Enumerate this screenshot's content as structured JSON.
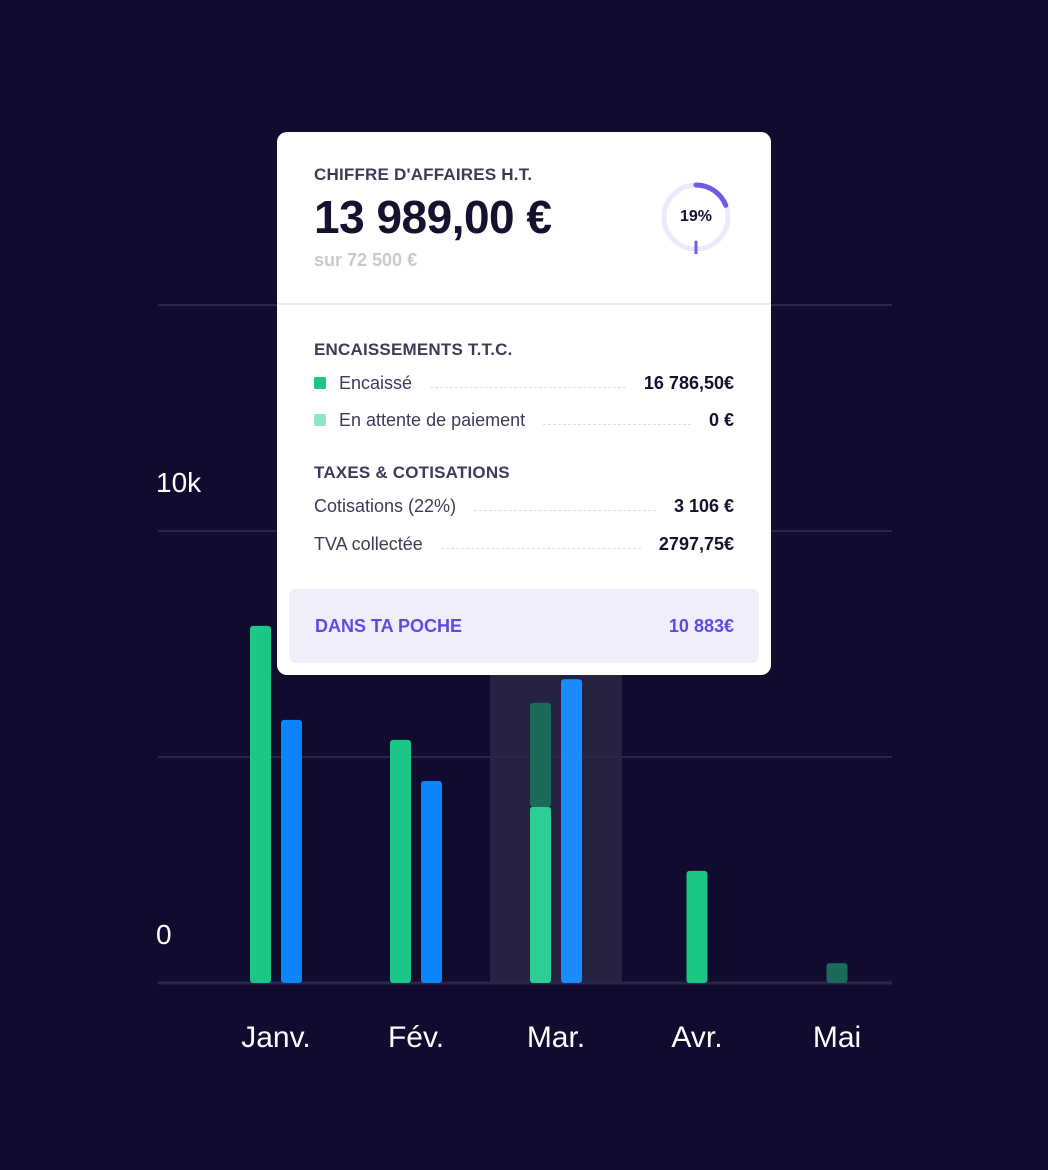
{
  "chart_data": {
    "type": "bar",
    "categories": [
      "Janv.",
      "Fév.",
      "Mar.",
      "Avr.",
      "Mai"
    ],
    "y_ticks": [
      {
        "value": 0,
        "label": "0"
      },
      {
        "value": 10000,
        "label": "10k"
      }
    ],
    "ylim": [
      0,
      15000
    ],
    "highlighted_category": "Mar.",
    "series": [
      {
        "color": "#1cc785",
        "values": [
          7900,
          5380,
          3900,
          2480,
          0
        ]
      },
      {
        "color": "#1a6b5c",
        "values": [
          0,
          0,
          2300,
          0,
          440
        ]
      },
      {
        "color": "#0a84ff",
        "values": [
          5820,
          4470,
          6720,
          0,
          0
        ]
      }
    ],
    "colors": {
      "highlight_band": "#262241",
      "highlight_green": "#2ecd93",
      "highlight_blue": "#1a8cff",
      "grid": "#2a2648"
    }
  },
  "summary_card": {
    "revenue_title": "CHIFFRE D'AFFAIRES H.T.",
    "revenue_amount": "13 989,00 €",
    "revenue_target": "sur 72 500 €",
    "progress_fraction": 0.19,
    "progress_label": "19%",
    "collections_title": "ENCAISSEMENTS T.T.C.",
    "collections": [
      {
        "label": "Encaissé",
        "value": "16 786,50€",
        "color": "#1cc785"
      },
      {
        "label": "En attente de paiement",
        "value": "0 €",
        "color": "#8ee8c4"
      }
    ],
    "taxes_title": "TAXES & COTISATIONS",
    "taxes": [
      {
        "label": "Cotisations (22%)",
        "value": "3 106 €"
      },
      {
        "label": "TVA collectée",
        "value": "2797,75€"
      }
    ],
    "pocket_label": "DANS TA POCHE",
    "pocket_value": "10 883€"
  },
  "colors": {
    "background": "#100b2f",
    "accent": "#5a4de0",
    "ring_track": "#ebe9fb"
  }
}
